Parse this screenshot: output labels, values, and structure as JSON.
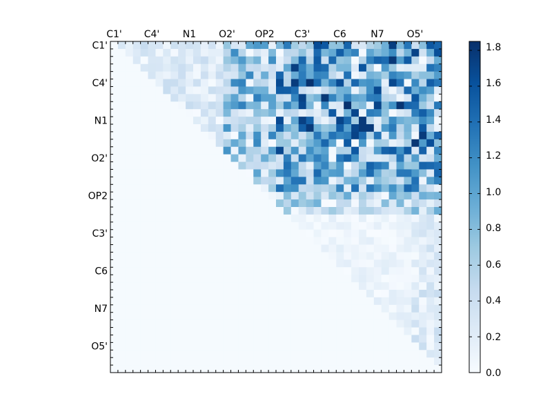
{
  "chart_data": {
    "type": "heatmap",
    "title": "",
    "xlabel": "",
    "ylabel": "",
    "grid": false,
    "n": 44,
    "row_labels": [
      "C1'",
      "C4'",
      "N1",
      "O2'",
      "OP2",
      "C3'",
      "C6",
      "N7",
      "O5'"
    ],
    "col_labels": [
      "C1'",
      "C4'",
      "N1",
      "O2'",
      "OP2",
      "C3'",
      "C6",
      "N7",
      "O5'"
    ],
    "label_indices": [
      0,
      5,
      10,
      15,
      20,
      25,
      30,
      35,
      40
    ],
    "colormap": "Blues",
    "colorbar": {
      "min": 0.0,
      "max": 1.85,
      "ticks": [
        "0.0",
        "0.2",
        "0.4",
        "0.6",
        "0.8",
        "1.0",
        "1.2",
        "1.4",
        "1.6",
        "1.8"
      ]
    },
    "row_ranges": [
      {
        "start": 0,
        "end": 5,
        "min": 0.0,
        "max": 1.8
      },
      {
        "start": 5,
        "end": 10,
        "min": 0.0,
        "max": 1.85
      },
      {
        "start": 10,
        "end": 15,
        "min": 0.0,
        "max": 1.85
      },
      {
        "start": 15,
        "end": 20,
        "min": 0.0,
        "max": 1.5
      },
      {
        "start": 20,
        "end": 23,
        "min": 0.0,
        "max": 1.0
      },
      {
        "start": 23,
        "end": 30,
        "min": 0.0,
        "max": 0.4
      },
      {
        "start": 30,
        "end": 44,
        "min": 0.0,
        "max": 0.45
      }
    ]
  }
}
